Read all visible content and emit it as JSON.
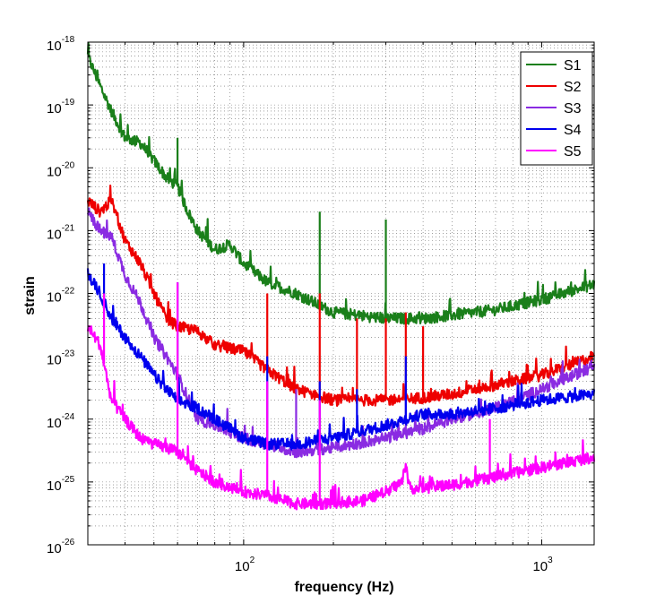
{
  "chart_data": {
    "type": "line",
    "xlabel": "frequency (Hz)",
    "ylabel": "strain",
    "xscale": "log",
    "yscale": "log",
    "xlim": [
      30,
      1500
    ],
    "ylim": [
      1e-26,
      1e-18
    ],
    "grid": true,
    "legend_position": "top-right",
    "x_ticks": [
      {
        "value": 100,
        "base": "10",
        "exp": "2"
      },
      {
        "value": 1000,
        "base": "10",
        "exp": "3"
      }
    ],
    "y_ticks": [
      {
        "value": 1e-18,
        "base": "10",
        "exp": "-18"
      },
      {
        "value": 1e-19,
        "base": "10",
        "exp": "-19"
      },
      {
        "value": 1e-20,
        "base": "10",
        "exp": "-20"
      },
      {
        "value": 1e-21,
        "base": "10",
        "exp": "-21"
      },
      {
        "value": 1e-22,
        "base": "10",
        "exp": "-22"
      },
      {
        "value": 1e-23,
        "base": "10",
        "exp": "-23"
      },
      {
        "value": 1e-24,
        "base": "10",
        "exp": "-24"
      },
      {
        "value": 1e-25,
        "base": "10",
        "exp": "-25"
      },
      {
        "value": 1e-26,
        "base": "10",
        "exp": "-26"
      }
    ],
    "series": [
      {
        "name": "S1",
        "color": "#1a7f1a",
        "x": [
          30,
          33,
          36,
          40,
          45,
          50,
          55,
          60,
          65,
          70,
          80,
          90,
          100,
          120,
          150,
          200,
          300,
          400,
          500,
          700,
          1000,
          1500
        ],
        "y": [
          6e-19,
          2e-19,
          8e-20,
          3e-20,
          2.5e-20,
          1.3e-20,
          7e-21,
          5e-21,
          2e-21,
          1e-21,
          5e-22,
          6e-22,
          3e-22,
          1.5e-22,
          1e-22,
          5e-23,
          4e-23,
          4e-23,
          4.5e-23,
          5.5e-23,
          8e-23,
          1.4e-22
        ],
        "lines": [
          {
            "x": 60,
            "y": 3e-20
          },
          {
            "x": 180,
            "y": 2e-21
          },
          {
            "x": 300,
            "y": 1.5e-21
          }
        ]
      },
      {
        "name": "S2",
        "color": "#ee0000",
        "x": [
          30,
          33,
          36,
          40,
          45,
          50,
          55,
          60,
          70,
          80,
          100,
          120,
          150,
          200,
          300,
          400,
          500,
          700,
          1000,
          1500
        ],
        "y": [
          3e-21,
          2e-21,
          3e-21,
          7e-22,
          3e-22,
          1e-22,
          4e-23,
          3e-23,
          2.5e-23,
          1.5e-23,
          1.2e-23,
          6e-24,
          3e-24,
          2e-24,
          2e-24,
          2.2e-24,
          2.5e-24,
          3.5e-24,
          5e-24,
          1e-23
        ],
        "lines": [
          {
            "x": 120,
            "y": 1e-22
          },
          {
            "x": 180,
            "y": 1e-22
          },
          {
            "x": 240,
            "y": 4e-23
          },
          {
            "x": 300,
            "y": 4e-23
          },
          {
            "x": 350,
            "y": 5e-23
          },
          {
            "x": 400,
            "y": 3e-23
          }
        ]
      },
      {
        "name": "S3",
        "color": "#8a2be2",
        "x": [
          30,
          33,
          36,
          40,
          45,
          50,
          55,
          60,
          70,
          80,
          100,
          120,
          150,
          200,
          300,
          400,
          500,
          700,
          1000,
          1500
        ],
        "y": [
          2e-21,
          1e-21,
          8e-22,
          2e-22,
          7e-23,
          2e-23,
          1e-23,
          5e-24,
          1e-24,
          8e-25,
          5e-25,
          4e-25,
          3e-25,
          3.5e-25,
          5e-25,
          7e-25,
          1e-24,
          1.5e-24,
          3e-24,
          7e-24
        ],
        "lines": [
          {
            "x": 150,
            "y": 3e-24
          },
          {
            "x": 350,
            "y": 5e-24
          }
        ]
      },
      {
        "name": "S4",
        "color": "#0000ee",
        "x": [
          30,
          33,
          36,
          40,
          45,
          50,
          55,
          60,
          70,
          80,
          100,
          120,
          150,
          200,
          300,
          350,
          400,
          500,
          700,
          1000,
          1500
        ],
        "y": [
          2e-22,
          1e-22,
          4e-23,
          2e-23,
          1e-23,
          5e-24,
          3e-24,
          2e-24,
          1.5e-24,
          1e-24,
          5e-25,
          4e-25,
          4e-25,
          5e-25,
          8e-25,
          1e-24,
          1.2e-24,
          1.2e-24,
          1.5e-24,
          2e-24,
          2.5e-24
        ],
        "lines": [
          {
            "x": 34,
            "y": 3e-22
          },
          {
            "x": 60,
            "y": 1.5e-22
          },
          {
            "x": 120,
            "y": 1e-23
          },
          {
            "x": 180,
            "y": 4e-24
          },
          {
            "x": 240,
            "y": 3e-24
          },
          {
            "x": 350,
            "y": 1e-23
          }
        ]
      },
      {
        "name": "S5",
        "color": "#ff00ff",
        "x": [
          30,
          33,
          36,
          40,
          45,
          50,
          55,
          60,
          70,
          80,
          100,
          120,
          150,
          180,
          250,
          300,
          340,
          350,
          360,
          400,
          500,
          700,
          1000,
          1500
        ],
        "y": [
          3e-23,
          1.5e-23,
          2e-24,
          1e-24,
          5e-25,
          4e-25,
          3.5e-25,
          3e-25,
          1.5e-25,
          1e-25,
          7e-26,
          6e-26,
          4.5e-26,
          4.5e-26,
          5e-26,
          7e-26,
          1e-25,
          2e-25,
          8e-26,
          8e-26,
          9e-26,
          1.2e-25,
          1.7e-25,
          2.5e-25
        ],
        "lines": [
          {
            "x": 34,
            "y": 1e-22
          },
          {
            "x": 60,
            "y": 1.5e-22
          },
          {
            "x": 120,
            "y": 4e-24
          },
          {
            "x": 180,
            "y": 2e-24
          },
          {
            "x": 670,
            "y": 1e-24
          }
        ]
      }
    ]
  }
}
